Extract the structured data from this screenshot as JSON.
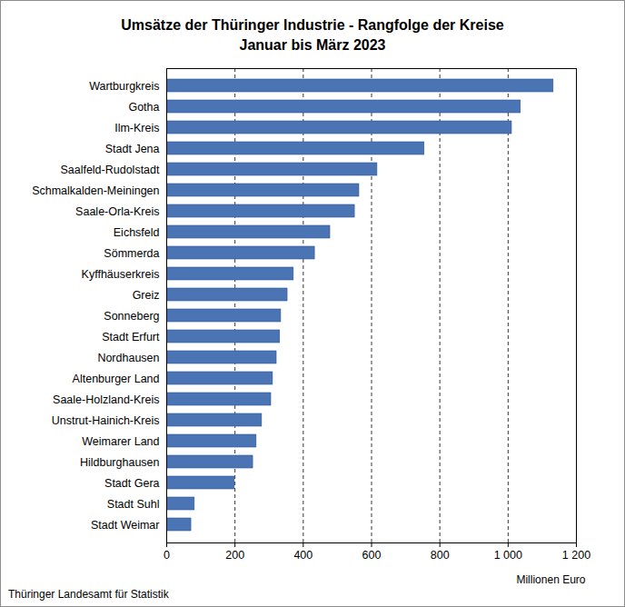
{
  "chart_data": {
    "type": "bar",
    "orientation": "horizontal",
    "title": "Umsätze der Thüringer Industrie - Rangfolge der Kreise",
    "subtitle": "Januar bis März 2023",
    "source": "Thüringer Landesamt für Statistik",
    "x_label": "Millionen Euro",
    "categories": [
      "Wartburgkreis",
      "Gotha",
      "Ilm-Kreis",
      "Stadt Jena",
      "Saalfeld-Rudolstadt",
      "Schmalkalden-Meiningen",
      "Saale-Orla-Kreis",
      "Eichsfeld",
      "Sömmerda",
      "Kyffhäuserkreis",
      "Greiz",
      "Sonneberg",
      "Stadt Erfurt",
      "Nordhausen",
      "Altenburger Land",
      "Saale-Holzland-Kreis",
      "Unstrut-Hainich-Kreis",
      "Weimarer Land",
      "Hildburghausen",
      "Stadt Gera",
      "Stadt Suhl",
      "Stadt Weimar"
    ],
    "values": [
      1133,
      1037,
      1011,
      755,
      617,
      564,
      551,
      479,
      434,
      372,
      354,
      335,
      332,
      322,
      311,
      306,
      279,
      263,
      253,
      199,
      82,
      72
    ],
    "color": "#4a74b4",
    "xlim": [
      0,
      1200
    ],
    "xticks": [
      0,
      200,
      400,
      600,
      800,
      {
        "value": 1000,
        "label": "1 000"
      },
      {
        "value": 1200,
        "label": "1 200"
      }
    ],
    "grid": true
  }
}
